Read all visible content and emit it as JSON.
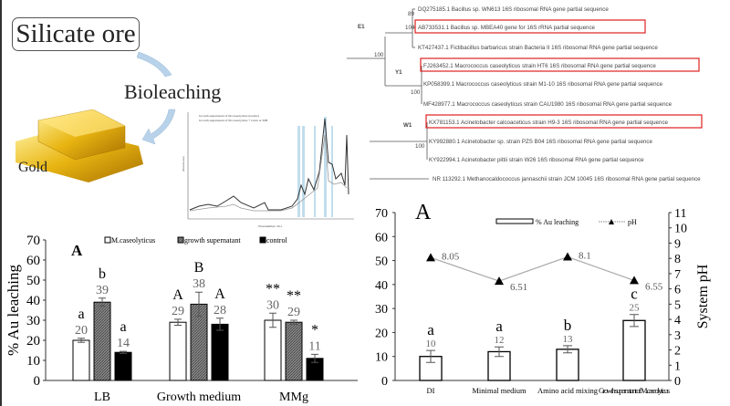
{
  "process": {
    "ore_label": "Silicate ore",
    "process_label": "Bioleaching",
    "product_label": "Gold"
  },
  "spectrum": {
    "legend": [
      "Growth supernatant of M.caseolyticus (isolate)",
      "Growth supernatant of M.caseolyticus + Gxxx at 30H"
    ],
    "xlabel": "Wavenumber cm-1",
    "ylabel": "Absorbance"
  },
  "tree": {
    "clusters": [
      "E1",
      "Y1",
      "W1"
    ],
    "bootstrap": [
      "89",
      "100",
      "100",
      "100",
      "100"
    ],
    "taxa": [
      {
        "label": "DQ275185.1 Bacillus sp. WN613 16S ribosomal RNA gene partial sequence",
        "highlight": false
      },
      {
        "label": "AB733531.1 Bacillus sp. MBEA40 gene for 16S rRNA partial sequence",
        "highlight": true
      },
      {
        "label": "KT427437.1 Fictibacillus barbaricus strain Bacteria II 16S ribosomal RNA gene partial sequence",
        "highlight": false
      },
      {
        "label": "FJ263452.1 Macrococcus caseolyticus strain HT6 16S ribosomal RNA gene partial sequence",
        "highlight": true
      },
      {
        "label": "KP058399.1 Macrococcus caseolyticus strain M1-10 16S ribosomal RNA gene partial sequence",
        "highlight": false
      },
      {
        "label": "MF428977.1 Macrococcus caseolyticus strain CAU1980 16S ribosomal RNA gene partial sequence",
        "highlight": false
      },
      {
        "label": "KX781153.1 Acinetobacter calcoaceticus strain H9-3 16S ribosomal RNA gene partial sequence",
        "highlight": true
      },
      {
        "label": "KY992880.1 Acinetobacter sp. strain PZS B04 16S ribosomal RNA gene partial sequence",
        "highlight": false
      },
      {
        "label": "KY922994.1 Acinetobacter pittii strain W26 16S ribosomal RNA gene partial sequence",
        "highlight": false
      },
      {
        "label": "NR 113292.1 Methanocaldococcus jannaschii strain JCM 10045 16S ribosomal RNA gene partial sequence",
        "highlight": false
      }
    ],
    "highlight_color": "#e02020"
  },
  "chart_data": [
    {
      "type": "bar",
      "panel_label": "A",
      "ylabel": "% Au leaching",
      "ylim": [
        0,
        70
      ],
      "yticks": [
        0,
        10,
        20,
        30,
        40,
        50,
        60,
        70
      ],
      "categories": [
        "LB",
        "Growth medium",
        "MMg"
      ],
      "legend": "top",
      "series": [
        {
          "name": "M.caseolyticus",
          "values": [
            20,
            29,
            30
          ],
          "errors": [
            1,
            1.5,
            3.5
          ],
          "letters": [
            "a",
            "A",
            "**"
          ],
          "fill": "#ffffff"
        },
        {
          "name": "growth supernatant",
          "values": [
            39,
            38,
            29
          ],
          "errors": [
            2,
            6,
            1
          ],
          "letters": [
            "b",
            "B",
            "**"
          ],
          "fill": "#777777"
        },
        {
          "name": "control",
          "values": [
            14,
            28,
            11
          ],
          "errors": [
            0.5,
            3,
            2
          ],
          "letters": [
            "a",
            "A",
            "*"
          ],
          "fill": "#000000"
        }
      ]
    },
    {
      "type": "bar+line",
      "panel_label": "A",
      "ylabel": "% Au leaching",
      "y2label": "System pH",
      "ylim": [
        0,
        70
      ],
      "y2lim": [
        0,
        11
      ],
      "yticks": [
        0,
        10,
        20,
        30,
        40,
        50,
        60,
        70
      ],
      "y2ticks": [
        0,
        1,
        2,
        3,
        4,
        5,
        6,
        7,
        8,
        9,
        10,
        11
      ],
      "categories": [
        "DI",
        "Minimal medium",
        "Amino acid mixing",
        "Growth supernatant of M.caseolyticus"
      ],
      "legend_items": [
        "% Au leaching",
        "pH"
      ],
      "series": [
        {
          "name": "% Au leaching",
          "values": [
            10,
            12,
            13,
            25
          ],
          "errors": [
            2.5,
            2,
            1.5,
            2.5
          ],
          "letters": [
            "a",
            "a",
            "b",
            "c"
          ]
        },
        {
          "name": "pH",
          "values": [
            8.05,
            6.51,
            8.1,
            6.55
          ]
        }
      ]
    }
  ]
}
